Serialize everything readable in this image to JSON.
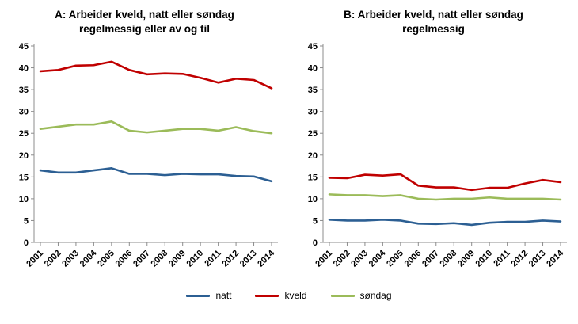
{
  "chart_data": [
    {
      "type": "line",
      "title": "A: Arbeider kveld, natt eller søndag regelmessig eller av og til",
      "x": [
        "2001",
        "2002",
        "2003",
        "2004",
        "2005",
        "2006",
        "2007",
        "2008",
        "2009",
        "2010",
        "2011",
        "2012",
        "2013",
        "2014"
      ],
      "ylim": [
        0,
        45
      ],
      "ytick_step": 5,
      "grid": false,
      "series": [
        {
          "name": "natt",
          "color": "#2C5F93",
          "values": [
            16.5,
            16.0,
            16.0,
            16.5,
            17.0,
            15.7,
            15.7,
            15.4,
            15.7,
            15.6,
            15.6,
            15.2,
            15.1,
            14.0
          ]
        },
        {
          "name": "kveld",
          "color": "#C00000",
          "values": [
            39.2,
            39.5,
            40.5,
            40.6,
            41.4,
            39.5,
            38.5,
            38.7,
            38.6,
            37.7,
            36.6,
            37.5,
            37.2,
            35.3
          ]
        },
        {
          "name": "søndag",
          "color": "#9BBB59",
          "values": [
            26.0,
            26.5,
            27.0,
            27.0,
            27.7,
            25.6,
            25.2,
            25.6,
            26.0,
            26.0,
            25.6,
            26.4,
            25.5,
            25.0
          ]
        }
      ]
    },
    {
      "type": "line",
      "title": "B: Arbeider kveld, natt eller søndag regelmessig",
      "x": [
        "2001",
        "2002",
        "2003",
        "2004",
        "2005",
        "2006",
        "2007",
        "2008",
        "2009",
        "2010",
        "2011",
        "2012",
        "2013",
        "2014"
      ],
      "ylim": [
        0,
        45
      ],
      "ytick_step": 5,
      "grid": false,
      "series": [
        {
          "name": "natt",
          "color": "#2C5F93",
          "values": [
            5.2,
            5.0,
            5.0,
            5.2,
            5.0,
            4.3,
            4.2,
            4.4,
            4.0,
            4.5,
            4.7,
            4.7,
            5.0,
            4.8
          ]
        },
        {
          "name": "kveld",
          "color": "#C00000",
          "values": [
            14.8,
            14.7,
            15.5,
            15.3,
            15.6,
            13.0,
            12.6,
            12.6,
            12.0,
            12.5,
            12.5,
            13.5,
            14.3,
            13.8
          ]
        },
        {
          "name": "søndag",
          "color": "#9BBB59",
          "values": [
            11.0,
            10.8,
            10.8,
            10.6,
            10.8,
            10.0,
            9.8,
            10.0,
            10.0,
            10.3,
            10.0,
            10.0,
            10.0,
            9.8
          ]
        }
      ]
    }
  ],
  "legend": {
    "items": [
      {
        "label": "natt",
        "color": "#2C5F93"
      },
      {
        "label": "kveld",
        "color": "#C00000"
      },
      {
        "label": "søndag",
        "color": "#9BBB59"
      }
    ]
  },
  "axis_color": "#8C8C8C"
}
